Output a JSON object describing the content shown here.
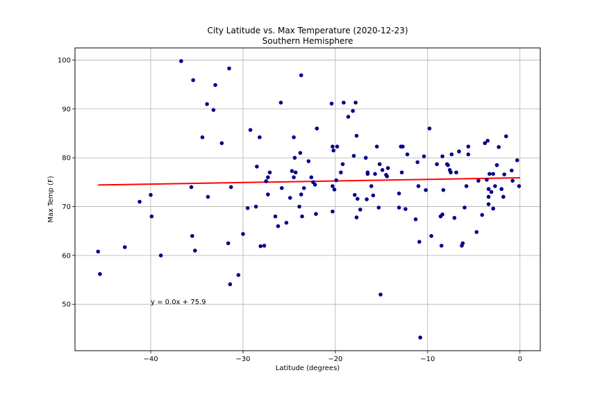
{
  "chart_data": {
    "type": "scatter",
    "title": "City Latitude vs. Max Temperature (2020-12-23)",
    "subtitle": "Southern Hemisphere",
    "xlabel": "Latitude (degrees)",
    "ylabel": "Max Temp (F)",
    "xlim": [
      -48.2,
      2.2
    ],
    "ylim": [
      40.5,
      102.5
    ],
    "xticks": [
      -40,
      -30,
      -20,
      -10,
      0
    ],
    "yticks": [
      50,
      60,
      70,
      80,
      90,
      100
    ],
    "grid": true,
    "colors": {
      "points": "#00008b",
      "regression": "#ff0000"
    },
    "regression": {
      "slope": 0.0322,
      "intercept": 75.9,
      "x_range": [
        -45.7,
        0
      ],
      "equation": "y = 0.0x + 75.9",
      "annotation_at": [
        -40,
        50
      ]
    },
    "points": [
      [
        -45.7,
        60.8
      ],
      [
        -45.5,
        56.2
      ],
      [
        -42.8,
        61.7
      ],
      [
        -41.2,
        71.0
      ],
      [
        -40.0,
        72.4
      ],
      [
        -39.9,
        68.0
      ],
      [
        -38.9,
        60.0
      ],
      [
        -36.7,
        99.8
      ],
      [
        -35.6,
        74.0
      ],
      [
        -35.5,
        64.0
      ],
      [
        -35.4,
        95.9
      ],
      [
        -35.2,
        61.0
      ],
      [
        -34.4,
        84.2
      ],
      [
        -33.9,
        91.0
      ],
      [
        -33.8,
        72.0
      ],
      [
        -33.2,
        89.8
      ],
      [
        -33.0,
        94.9
      ],
      [
        -32.3,
        83.0
      ],
      [
        -31.6,
        62.5
      ],
      [
        -31.5,
        98.3
      ],
      [
        -31.4,
        54.1
      ],
      [
        -31.3,
        74.0
      ],
      [
        -30.5,
        56.0
      ],
      [
        -30.0,
        64.4
      ],
      [
        -29.5,
        69.7
      ],
      [
        -29.2,
        85.7
      ],
      [
        -28.6,
        70.0
      ],
      [
        -28.5,
        78.2
      ],
      [
        -28.2,
        84.2
      ],
      [
        -28.1,
        61.9
      ],
      [
        -27.7,
        62.0
      ],
      [
        -27.5,
        75.2
      ],
      [
        -27.3,
        76.0
      ],
      [
        -27.3,
        72.5
      ],
      [
        -27.1,
        77.0
      ],
      [
        -26.5,
        68.0
      ],
      [
        -26.2,
        66.0
      ],
      [
        -25.9,
        91.3
      ],
      [
        -25.8,
        73.8
      ],
      [
        -25.3,
        66.7
      ],
      [
        -24.9,
        71.8
      ],
      [
        -24.7,
        77.3
      ],
      [
        -24.5,
        76.0
      ],
      [
        -24.5,
        84.2
      ],
      [
        -24.4,
        80.0
      ],
      [
        -24.3,
        77.0
      ],
      [
        -23.9,
        70.0
      ],
      [
        -23.8,
        81.0
      ],
      [
        -23.7,
        72.5
      ],
      [
        -23.7,
        96.9
      ],
      [
        -23.6,
        68.0
      ],
      [
        -23.4,
        73.8
      ],
      [
        -22.9,
        79.3
      ],
      [
        -22.6,
        76.0
      ],
      [
        -22.4,
        75.0
      ],
      [
        -22.2,
        74.5
      ],
      [
        -22.1,
        68.5
      ],
      [
        -22.0,
        86.0
      ],
      [
        -20.4,
        91.1
      ],
      [
        -20.3,
        74.2
      ],
      [
        -20.3,
        69.0
      ],
      [
        -20.3,
        82.3
      ],
      [
        -20.2,
        81.5
      ],
      [
        -20.1,
        73.5
      ],
      [
        -19.9,
        75.4
      ],
      [
        -19.8,
        82.3
      ],
      [
        -19.4,
        77.0
      ],
      [
        -19.2,
        78.7
      ],
      [
        -19.1,
        91.3
      ],
      [
        -18.6,
        88.4
      ],
      [
        -18.1,
        89.6
      ],
      [
        -18.0,
        80.4
      ],
      [
        -17.9,
        72.4
      ],
      [
        -17.8,
        91.3
      ],
      [
        -17.7,
        67.8
      ],
      [
        -17.7,
        84.5
      ],
      [
        -17.6,
        71.6
      ],
      [
        -17.3,
        69.4
      ],
      [
        -16.7,
        80.0
      ],
      [
        -16.6,
        71.5
      ],
      [
        -16.5,
        77.0
      ],
      [
        -16.5,
        76.7
      ],
      [
        -16.1,
        74.2
      ],
      [
        -15.9,
        72.3
      ],
      [
        -15.7,
        76.7
      ],
      [
        -15.5,
        82.3
      ],
      [
        -15.3,
        69.8
      ],
      [
        -15.2,
        78.7
      ],
      [
        -15.1,
        52.0
      ],
      [
        -14.9,
        77.5
      ],
      [
        -14.5,
        76.5
      ],
      [
        -14.4,
        76.2
      ],
      [
        -14.3,
        77.9
      ],
      [
        -13.1,
        72.7
      ],
      [
        -13.1,
        69.8
      ],
      [
        -12.9,
        82.3
      ],
      [
        -12.8,
        77.0
      ],
      [
        -12.7,
        82.3
      ],
      [
        -12.4,
        69.5
      ],
      [
        -12.2,
        80.7
      ],
      [
        -11.3,
        67.4
      ],
      [
        -11.1,
        79.1
      ],
      [
        -11.0,
        74.2
      ],
      [
        -10.9,
        62.8
      ],
      [
        -10.8,
        43.2
      ],
      [
        -10.4,
        80.3
      ],
      [
        -10.2,
        73.4
      ],
      [
        -9.8,
        86.0
      ],
      [
        -9.6,
        64.0
      ],
      [
        -9.0,
        78.7
      ],
      [
        -8.6,
        68.0
      ],
      [
        -8.5,
        62.0
      ],
      [
        -8.4,
        80.3
      ],
      [
        -8.4,
        68.4
      ],
      [
        -8.3,
        73.4
      ],
      [
        -7.9,
        78.7
      ],
      [
        -7.8,
        78.5
      ],
      [
        -7.6,
        77.5
      ],
      [
        -7.5,
        77.0
      ],
      [
        -7.4,
        80.7
      ],
      [
        -7.1,
        67.7
      ],
      [
        -6.9,
        77.0
      ],
      [
        -6.6,
        81.3
      ],
      [
        -6.3,
        62.0
      ],
      [
        -6.2,
        62.5
      ],
      [
        -6.0,
        69.8
      ],
      [
        -5.8,
        74.2
      ],
      [
        -5.6,
        82.3
      ],
      [
        -5.6,
        80.7
      ],
      [
        -4.7,
        64.8
      ],
      [
        -4.5,
        75.3
      ],
      [
        -4.1,
        68.3
      ],
      [
        -3.8,
        83.0
      ],
      [
        -3.6,
        75.5
      ],
      [
        -3.5,
        83.5
      ],
      [
        -3.4,
        72.0
      ],
      [
        -3.4,
        70.5
      ],
      [
        -3.4,
        73.6
      ],
      [
        -3.3,
        76.7
      ],
      [
        -3.1,
        73.0
      ],
      [
        -2.9,
        76.7
      ],
      [
        -2.9,
        69.6
      ],
      [
        -2.7,
        74.2
      ],
      [
        -2.5,
        78.5
      ],
      [
        -2.3,
        82.2
      ],
      [
        -2.0,
        73.6
      ],
      [
        -1.8,
        72.0
      ],
      [
        -1.7,
        76.6
      ],
      [
        -1.5,
        84.4
      ],
      [
        -0.9,
        77.4
      ],
      [
        -0.8,
        75.3
      ],
      [
        -0.3,
        79.5
      ],
      [
        -0.1,
        74.2
      ]
    ]
  }
}
